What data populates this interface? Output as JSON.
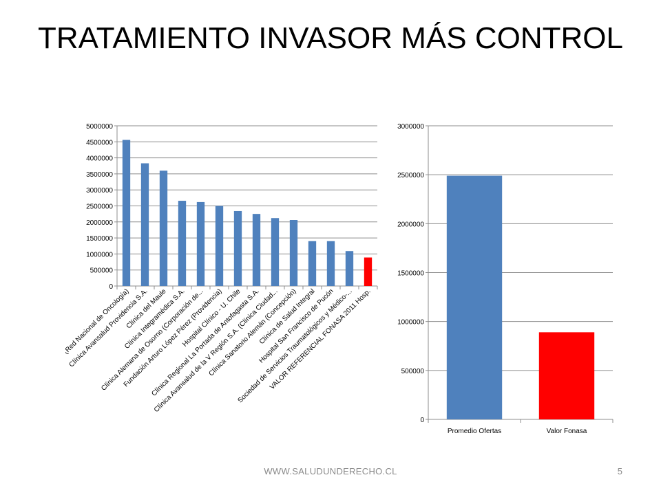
{
  "slide": {
    "title": "TRATAMIENTO INVASOR MÁS CONTROL",
    "footer": "WWW.SALUDUNDERECHO.CL",
    "page_number": "5"
  },
  "chart_data": [
    {
      "type": "bar",
      "categories": [
        "Oncomed (Red Nacional de Oncología)",
        "Clínica Avansalud Providencia S.A.",
        "Clínica del Maule",
        "Clínica Integramédica S.A.",
        "Clínica Alemana de Osorno (Corporación de...",
        "Fundación Arturo López Pérez (Providencia)",
        "Hospital Clínico - U. Chile",
        "Clínica Regional La Portada de Antofagasta S.A.",
        "Clínica Avansalud de la V Región S.A. (Clínica Ciudad...",
        "Clínica Sanatorio Alemán (Concepción)",
        "Clínica de Salud Integral",
        "Hospital San Francisco de Pucón",
        "Sociedad de Servicios Traumatológicos y Médico-...",
        "VALOR REFERENCIAL FONASA 2011 Hosp."
      ],
      "values": [
        4560000,
        3830000,
        3600000,
        2660000,
        2620000,
        2500000,
        2340000,
        2250000,
        2120000,
        2060000,
        1400000,
        1400000,
        1090000,
        890000
      ],
      "colors": [
        "#4f81bd",
        "#4f81bd",
        "#4f81bd",
        "#4f81bd",
        "#4f81bd",
        "#4f81bd",
        "#4f81bd",
        "#4f81bd",
        "#4f81bd",
        "#4f81bd",
        "#4f81bd",
        "#4f81bd",
        "#4f81bd",
        "#ff0000"
      ],
      "ylim": [
        0,
        5000000
      ],
      "yticks": [
        0,
        500000,
        1000000,
        1500000,
        2000000,
        2500000,
        3000000,
        3500000,
        4000000,
        4500000,
        5000000
      ],
      "grid": true,
      "legend": "none"
    },
    {
      "type": "bar",
      "categories": [
        "Promedio Ofertas",
        "Valor Fonasa"
      ],
      "values": [
        2490000,
        890000
      ],
      "colors": [
        "#4f81bd",
        "#ff0000"
      ],
      "ylim": [
        0,
        3000000
      ],
      "yticks": [
        0,
        500000,
        1000000,
        1500000,
        2000000,
        2500000,
        3000000
      ],
      "grid": true,
      "legend": "none"
    }
  ]
}
